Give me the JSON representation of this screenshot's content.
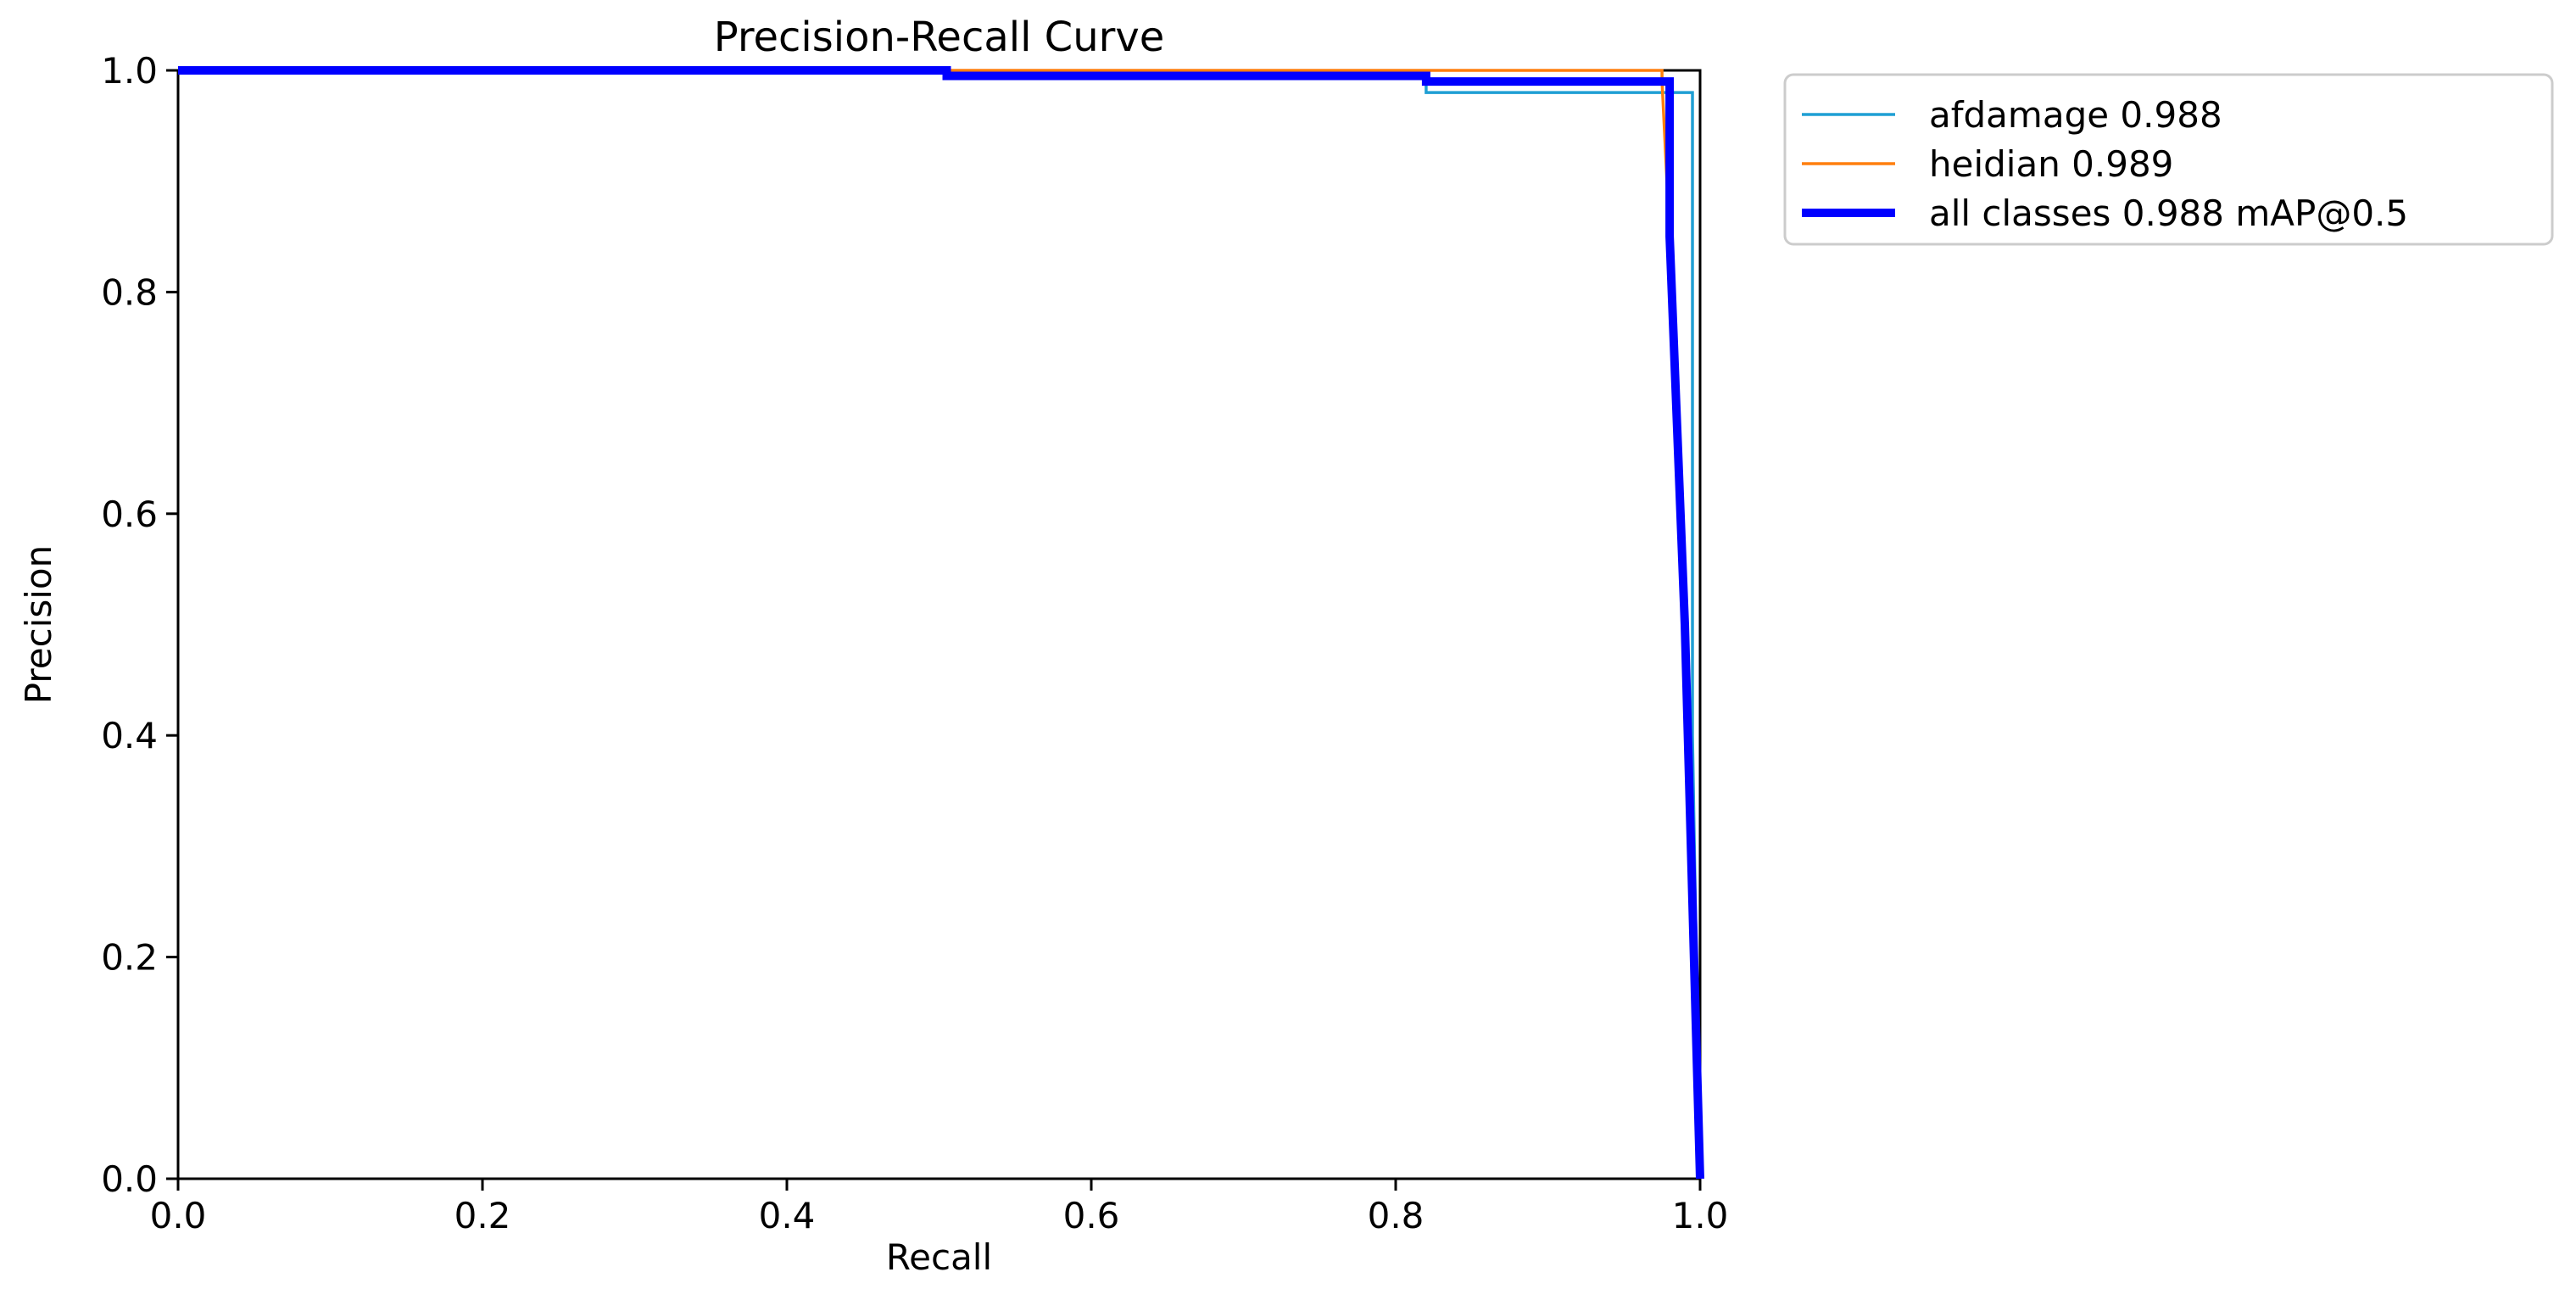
{
  "chart_data": {
    "type": "line",
    "title": "Precision-Recall Curve",
    "xlabel": "Recall",
    "ylabel": "Precision",
    "xlim": [
      0.0,
      1.0
    ],
    "ylim": [
      0.0,
      1.0
    ],
    "xticks": [
      "0.0",
      "0.2",
      "0.4",
      "0.6",
      "0.8",
      "1.0"
    ],
    "yticks": [
      "0.0",
      "0.2",
      "0.4",
      "0.6",
      "0.8",
      "1.0"
    ],
    "grid": false,
    "legend_position": "outside-top-right",
    "series": [
      {
        "name": "afdamage 0.988",
        "color": "#1f9fd4",
        "line_width": "thin",
        "x": [
          0.0,
          0.5,
          0.505,
          0.82,
          0.82,
          0.995,
          0.995,
          1.0
        ],
        "y": [
          1.0,
          1.0,
          0.995,
          0.995,
          0.98,
          0.98,
          0.4,
          0.0
        ]
      },
      {
        "name": "heidian 0.989",
        "color": "#ff7f0e",
        "line_width": "thin",
        "x": [
          0.0,
          0.975,
          0.975,
          0.98,
          0.99,
          1.0
        ],
        "y": [
          1.0,
          1.0,
          0.99,
          0.85,
          0.45,
          0.0
        ]
      },
      {
        "name": "all classes 0.988 mAP@0.5",
        "color": "#0000ff",
        "line_width": "thick",
        "x": [
          0.0,
          0.505,
          0.505,
          0.82,
          0.82,
          0.98,
          0.98,
          0.99,
          1.0
        ],
        "y": [
          1.0,
          1.0,
          0.995,
          0.995,
          0.99,
          0.99,
          0.85,
          0.5,
          0.0
        ]
      }
    ]
  }
}
